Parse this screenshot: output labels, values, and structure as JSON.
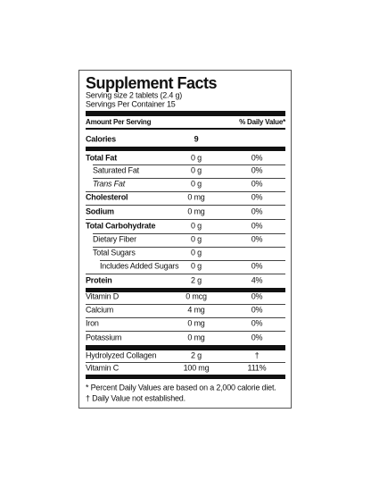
{
  "header": {
    "title": "Supplement Facts",
    "serving_size": "Serving size 2 tablets (2.4 g)",
    "servings_per_container": "Servings Per Container 15"
  },
  "table": {
    "column_headers": [
      "Amount Per Serving",
      "% Daily Value*"
    ],
    "rows": [
      {
        "name": "Calories",
        "amount": "9"
      },
      {
        "name": "Total Fat",
        "amount": "0 g",
        "dv": "0%"
      },
      {
        "name": "Saturated Fat",
        "amount": "0 g",
        "dv": "0%"
      },
      {
        "name": "Trans Fat",
        "amount": "0 g",
        "dv": "0%"
      },
      {
        "name": "Cholesterol",
        "amount": "0 mg",
        "dv": "0%"
      },
      {
        "name": "Sodium",
        "amount": "0 mg",
        "dv": "0%"
      },
      {
        "name": "Total Carbohydrate",
        "amount": "0 g",
        "dv": "0%"
      },
      {
        "name": "Dietary Fiber",
        "amount": "0 g",
        "dv": "0%"
      },
      {
        "name": "Total Sugars",
        "amount": "0 g"
      },
      {
        "name": "Includes Added Sugars",
        "amount": "0 g",
        "dv": "0%"
      },
      {
        "name": "Protein",
        "amount": "2 g",
        "dv": "4%"
      },
      {
        "name": "Vitamin D",
        "amount": "0 mcg",
        "dv": "0%"
      },
      {
        "name": "Calcium",
        "amount": "4 mg",
        "dv": "0%"
      },
      {
        "name": "Iron",
        "amount": "0 mg",
        "dv": "0%"
      },
      {
        "name": "Potassium",
        "amount": "0 mg",
        "dv": "0%"
      },
      {
        "name": "Hydrolyzed Collagen",
        "amount": "2 g",
        "dv": "†"
      },
      {
        "name": "Vitamin C",
        "amount": "100 mg",
        "dv": "111%"
      }
    ]
  },
  "footnotes": [
    "* Percent Daily Values are based on a 2,000 calorie diet.",
    "† Daily Value not established."
  ]
}
